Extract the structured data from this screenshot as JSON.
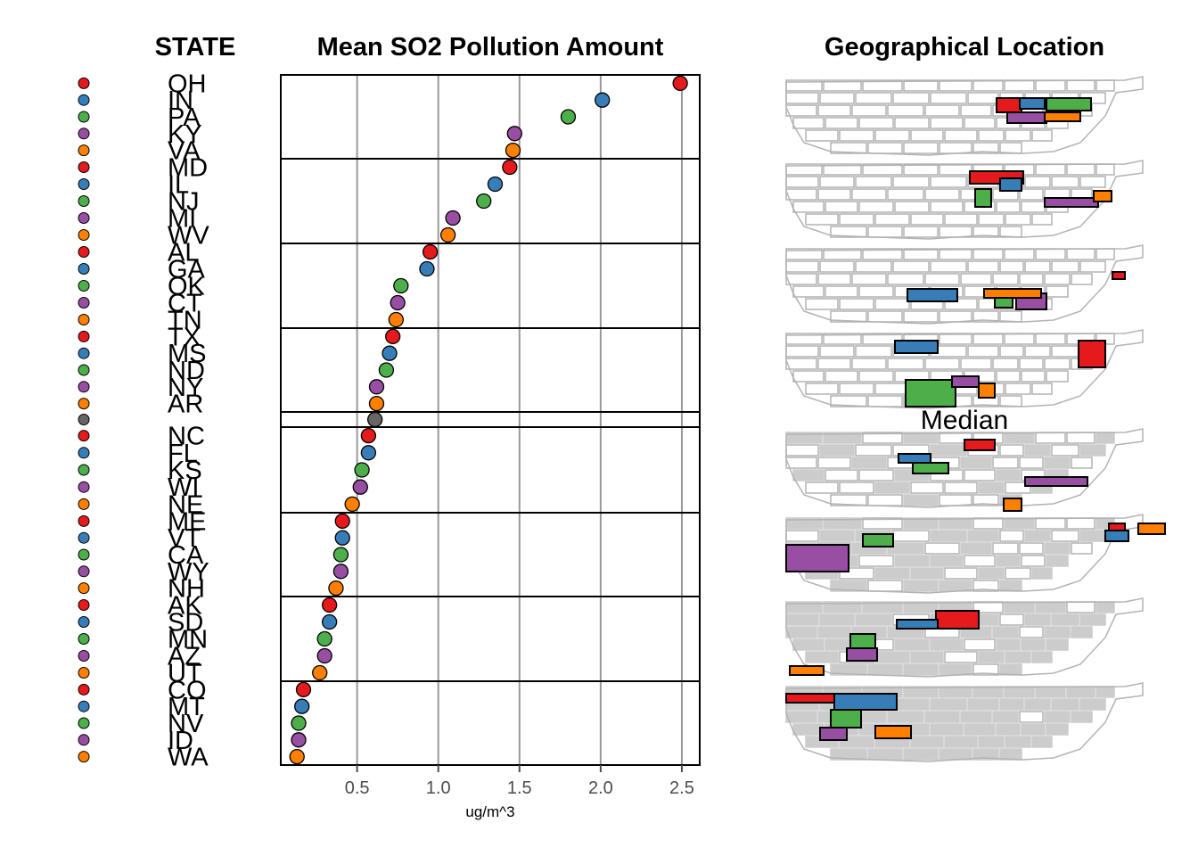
{
  "titles": {
    "state": "STATE",
    "chart": "Mean SO2 Pollution Amount",
    "map": "Geographical Location"
  },
  "median_label": "Median",
  "colors": [
    "#e41a1c",
    "#377eb8",
    "#4daf4a",
    "#984ea3",
    "#ff7f00"
  ],
  "median_color": "#666666",
  "map_colors": {
    "outline": "#b3b3b3",
    "filled": "#cccccc",
    "highlight_border": "#000000"
  },
  "chart_data": {
    "type": "scatter",
    "title": "Mean SO2 Pollution Amount",
    "xlabel": "ug/m^3",
    "ylabel": "",
    "xlim": [
      0.03,
      2.61
    ],
    "xticks": [
      0.5,
      1.0,
      1.5,
      2.0,
      2.5
    ],
    "xtick_labels": [
      "0.5",
      "1.0",
      "1.5",
      "2.0",
      "2.5"
    ],
    "grid": "vertical",
    "panels": [
      {
        "states": [
          "OH",
          "IN",
          "PA",
          "KY",
          "VA"
        ],
        "values": [
          2.49,
          2.01,
          1.8,
          1.47,
          1.46
        ]
      },
      {
        "states": [
          "MD",
          "IL",
          "NJ",
          "MI",
          "WV"
        ],
        "values": [
          1.44,
          1.35,
          1.28,
          1.09,
          1.06
        ]
      },
      {
        "states": [
          "AL",
          "GA",
          "OK",
          "CT",
          "TN"
        ],
        "values": [
          0.95,
          0.93,
          0.77,
          0.75,
          0.74
        ]
      },
      {
        "states": [
          "TX",
          "MS",
          "ND",
          "NY",
          "AR"
        ],
        "values": [
          0.72,
          0.7,
          0.68,
          0.62,
          0.62
        ]
      },
      {
        "median": true,
        "states": [
          ""
        ],
        "values": [
          0.61
        ]
      },
      {
        "states": [
          "NC",
          "FL",
          "KS",
          "WI",
          "NE"
        ],
        "values": [
          0.57,
          0.57,
          0.53,
          0.52,
          0.47
        ]
      },
      {
        "states": [
          "ME",
          "VT",
          "CA",
          "WY",
          "NH"
        ],
        "values": [
          0.41,
          0.41,
          0.4,
          0.4,
          0.37
        ]
      },
      {
        "states": [
          "AK",
          "SD",
          "MN",
          "AZ",
          "UT"
        ],
        "values": [
          0.33,
          0.33,
          0.3,
          0.3,
          0.27
        ]
      },
      {
        "states": [
          "CO",
          "MT",
          "NV",
          "ID",
          "WA"
        ],
        "values": [
          0.17,
          0.16,
          0.14,
          0.14,
          0.13
        ]
      }
    ]
  }
}
